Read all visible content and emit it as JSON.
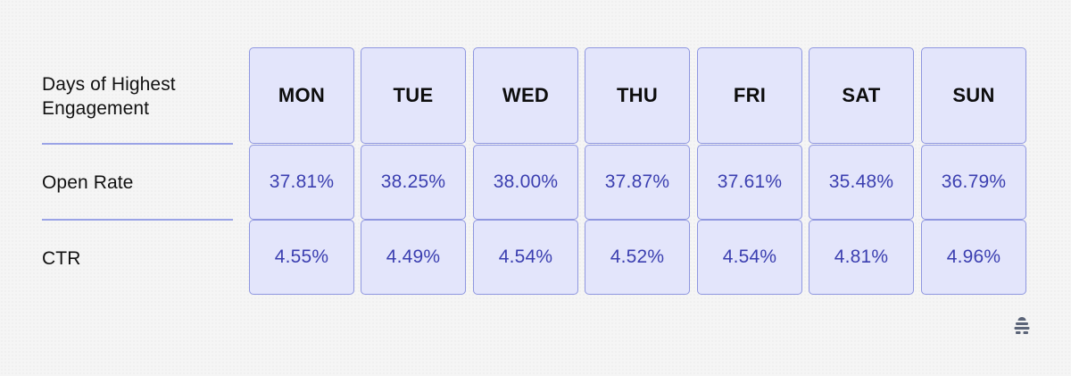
{
  "row_labels": {
    "header": "Days of Highest Engagement",
    "open_rate": "Open Rate",
    "ctr": "CTR"
  },
  "chart_data": {
    "type": "table",
    "columns": [
      "MON",
      "TUE",
      "WED",
      "THU",
      "FRI",
      "SAT",
      "SUN"
    ],
    "rows": [
      {
        "label": "Open Rate",
        "values": [
          "37.81%",
          "38.25%",
          "38.00%",
          "37.87%",
          "37.61%",
          "35.48%",
          "36.79%"
        ]
      },
      {
        "label": "CTR",
        "values": [
          "4.55%",
          "4.49%",
          "4.54%",
          "4.52%",
          "4.54%",
          "4.81%",
          "4.96%"
        ]
      }
    ]
  },
  "colors": {
    "cell_fill": "#e3e5fb",
    "cell_border": "#8f97e0",
    "value_text": "#3b3fb0",
    "divider": "#9aa3e6"
  },
  "logo_icon": "beehiiv-logo-icon"
}
